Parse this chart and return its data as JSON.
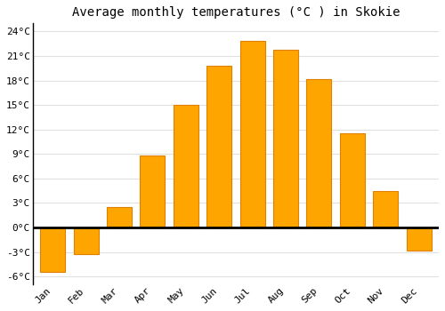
{
  "title": "Average monthly temperatures (°C ) in Skokie",
  "months": [
    "Jan",
    "Feb",
    "Mar",
    "Apr",
    "May",
    "Jun",
    "Jul",
    "Aug",
    "Sep",
    "Oct",
    "Nov",
    "Dec"
  ],
  "temperatures": [
    -5.5,
    -3.3,
    2.5,
    8.8,
    15.0,
    19.8,
    22.8,
    21.8,
    18.2,
    11.5,
    4.5,
    -2.8
  ],
  "bar_color_main": "#FFA500",
  "bar_color_edge": "#E08000",
  "ylim": [
    -7,
    25
  ],
  "ytick_values": [
    -6,
    -3,
    0,
    3,
    6,
    9,
    12,
    15,
    18,
    21,
    24
  ],
  "background_color": "#ffffff",
  "plot_bg_color": "#ffffff",
  "grid_color": "#e0e0e0",
  "title_fontsize": 10,
  "tick_fontsize": 8,
  "zero_line_color": "#000000",
  "spine_color": "#000000"
}
